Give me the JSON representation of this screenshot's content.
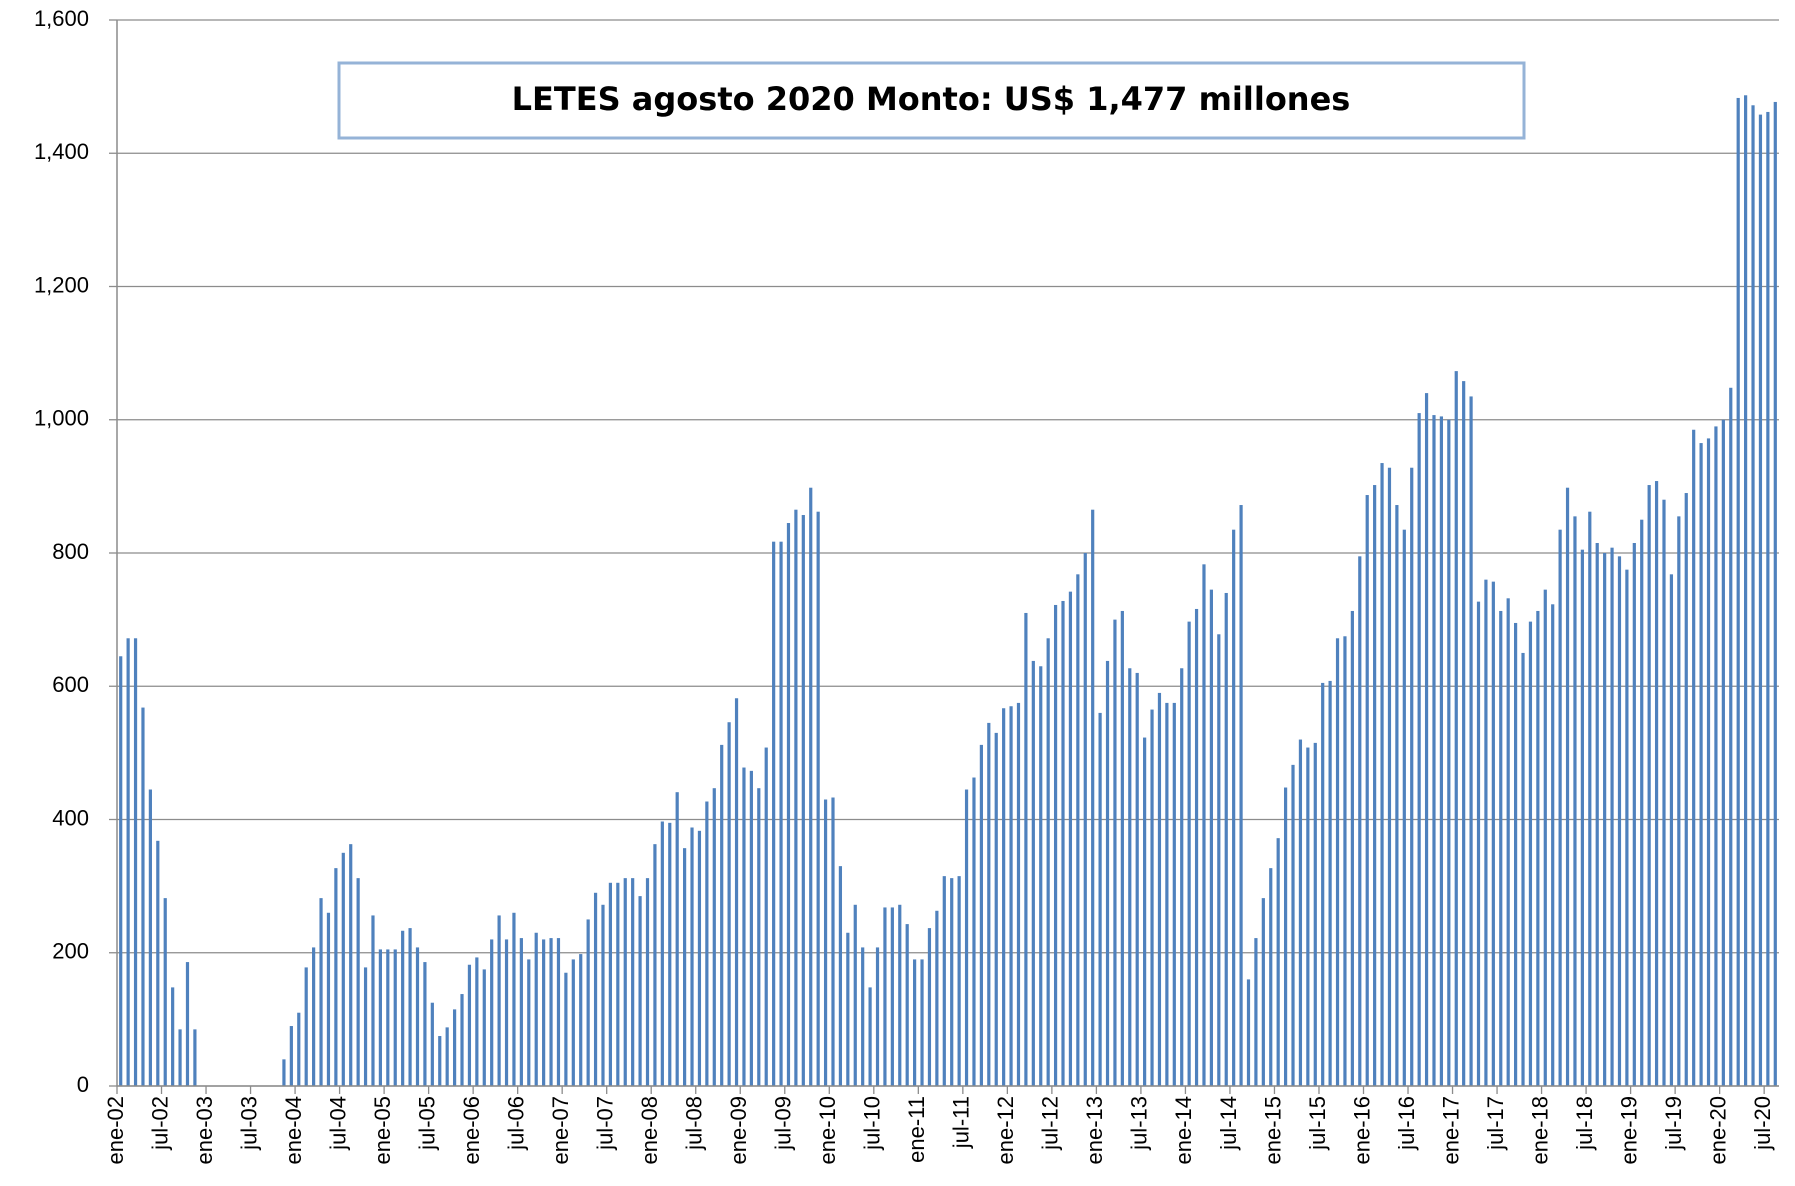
{
  "chart_data": {
    "type": "bar",
    "annotation": "LETES agosto 2020 Monto: US$ 1,477 millones",
    "color": "#4f81bd",
    "grid": true,
    "ylim": [
      0,
      1600
    ],
    "yticks": [
      0,
      200,
      400,
      600,
      800,
      {
        "value": 1000,
        "label": "1,000"
      },
      {
        "value": 1200,
        "label": "1,200"
      },
      {
        "value": 1400,
        "label": "1,400"
      },
      {
        "value": 1600,
        "label": "1,600"
      }
    ],
    "categories": [
      "ene-02",
      null,
      null,
      null,
      null,
      null,
      "jul-02",
      null,
      null,
      null,
      null,
      null,
      "ene-03",
      null,
      null,
      null,
      null,
      null,
      "jul-03",
      null,
      null,
      null,
      null,
      null,
      "ene-04",
      null,
      null,
      null,
      null,
      null,
      "jul-04",
      null,
      null,
      null,
      null,
      null,
      "ene-05",
      null,
      null,
      null,
      null,
      null,
      "jul-05",
      null,
      null,
      null,
      null,
      null,
      "ene-06",
      null,
      null,
      null,
      null,
      null,
      "jul-06",
      null,
      null,
      null,
      null,
      null,
      "ene-07",
      null,
      null,
      null,
      null,
      null,
      "jul-07",
      null,
      null,
      null,
      null,
      null,
      "ene-08",
      null,
      null,
      null,
      null,
      null,
      "jul-08",
      null,
      null,
      null,
      null,
      null,
      "ene-09",
      null,
      null,
      null,
      null,
      null,
      "jul-09",
      null,
      null,
      null,
      null,
      null,
      "ene-10",
      null,
      null,
      null,
      null,
      null,
      "jul-10",
      null,
      null,
      null,
      null,
      null,
      "ene-11",
      null,
      null,
      null,
      null,
      null,
      "jul-11",
      null,
      null,
      null,
      null,
      null,
      "ene-12",
      null,
      null,
      null,
      null,
      null,
      "jul-12",
      null,
      null,
      null,
      null,
      null,
      "ene-13",
      null,
      null,
      null,
      null,
      null,
      "jul-13",
      null,
      null,
      null,
      null,
      null,
      "ene-14",
      null,
      null,
      null,
      null,
      null,
      "jul-14",
      null,
      null,
      null,
      null,
      null,
      "ene-15",
      null,
      null,
      null,
      null,
      null,
      "jul-15",
      null,
      null,
      null,
      null,
      null,
      "ene-16",
      null,
      null,
      null,
      null,
      null,
      "jul-16",
      null,
      null,
      null,
      null,
      null,
      "ene-17",
      null,
      null,
      null,
      null,
      null,
      "jul-17",
      null,
      null,
      null,
      null,
      null,
      "ene-18",
      null,
      null,
      null,
      null,
      null,
      "jul-18",
      null,
      null,
      null,
      null,
      null,
      "ene-19",
      null,
      null,
      null,
      null,
      null,
      "jul-19",
      null,
      null,
      null,
      null,
      null,
      "ene-20",
      null,
      null,
      null,
      null,
      null,
      "jul-20",
      null
    ],
    "values": [
      645,
      672,
      672,
      568,
      445,
      368,
      282,
      148,
      85,
      186,
      85,
      0,
      0,
      0,
      0,
      0,
      0,
      0,
      0,
      0,
      0,
      0,
      40,
      90,
      110,
      178,
      208,
      282,
      260,
      327,
      350,
      363,
      312,
      178,
      256,
      205,
      205,
      205,
      233,
      237,
      208,
      186,
      125,
      75,
      88,
      115,
      138,
      182,
      193,
      175,
      220,
      256,
      220,
      260,
      222,
      190,
      230,
      220,
      222,
      222,
      170,
      190,
      198,
      250,
      290,
      272,
      305,
      305,
      312,
      312,
      285,
      312,
      363,
      397,
      395,
      441,
      357,
      388,
      383,
      427,
      447,
      512,
      546,
      582,
      478,
      473,
      447,
      508,
      817,
      817,
      845,
      865,
      857,
      898,
      862,
      430,
      433,
      330,
      230,
      272,
      208,
      148,
      208,
      268,
      268,
      272,
      243,
      190,
      190,
      237,
      263,
      315,
      312,
      315,
      445,
      463,
      512,
      545,
      530,
      567,
      570,
      575,
      710,
      638,
      630,
      672,
      722,
      728,
      742,
      768,
      800,
      865,
      560,
      638,
      700,
      713,
      627,
      620,
      523,
      565,
      590,
      575,
      575,
      627,
      697,
      716,
      783,
      745,
      678,
      740,
      835,
      872,
      160,
      222,
      282,
      327,
      372,
      448,
      482,
      520,
      508,
      515,
      605,
      608,
      672,
      675,
      713,
      795,
      887,
      902,
      935,
      928,
      872,
      835,
      928,
      1010,
      1040,
      1007,
      1005,
      1000,
      1073,
      1058,
      1035,
      727,
      760,
      757,
      713,
      732,
      695,
      650,
      697,
      713,
      745,
      723,
      835,
      898,
      855,
      805,
      862,
      815,
      800,
      808,
      795,
      775,
      815,
      850,
      902,
      908,
      880,
      768,
      855,
      890,
      985,
      965,
      972,
      990,
      1000,
      1048,
      1483,
      1487,
      1472,
      1458,
      1462,
      1477
    ]
  }
}
